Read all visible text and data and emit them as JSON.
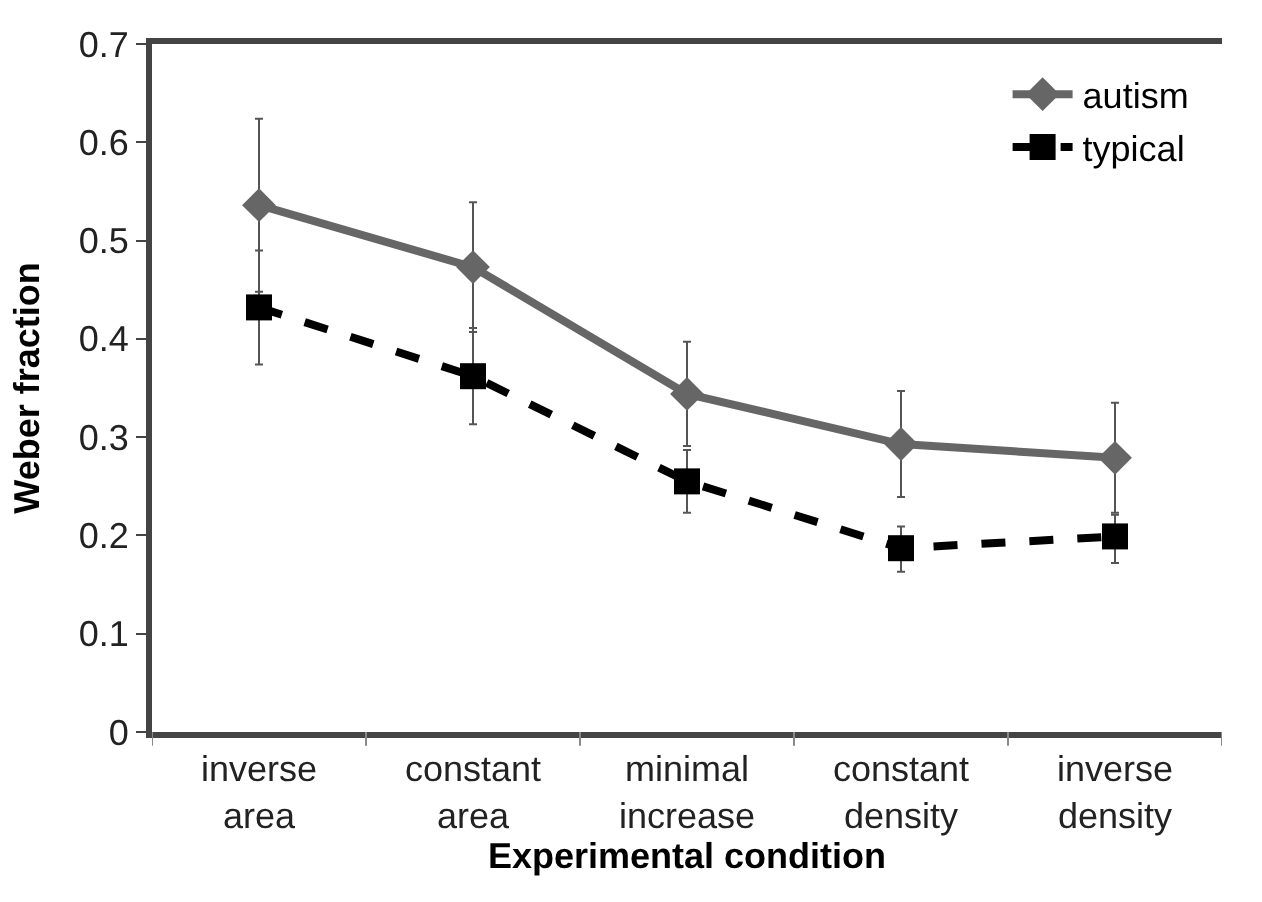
{
  "chart_data": {
    "type": "line",
    "xlabel": "Experimental condition",
    "ylabel": "Weber fraction",
    "categories": [
      "inverse\narea",
      "constant\narea",
      "minimal\nincrease",
      "constant\ndensity",
      "inverse\ndensity"
    ],
    "series": [
      {
        "name": "autism",
        "color": "#666666",
        "marker": "diamond",
        "line_style": "solid",
        "values": [
          0.536,
          0.473,
          0.344,
          0.293,
          0.279
        ],
        "errors": [
          0.088,
          0.066,
          0.053,
          0.054,
          0.056
        ]
      },
      {
        "name": "typical",
        "color": "#000000",
        "marker": "square",
        "line_style": "dashed",
        "values": [
          0.432,
          0.362,
          0.255,
          0.187,
          0.199
        ],
        "errors": [
          [
            0.374,
            0.49
          ],
          [
            0.313,
            0.411
          ],
          [
            0.223,
            0.287
          ],
          [
            0.163,
            0.209
          ],
          [
            0.172,
            0.221
          ]
        ]
      }
    ],
    "ylim": [
      0,
      0.7
    ],
    "yticks": [
      0,
      0.1,
      0.2,
      0.3,
      0.4,
      0.5,
      0.6,
      0.7
    ],
    "legend": "top right"
  }
}
